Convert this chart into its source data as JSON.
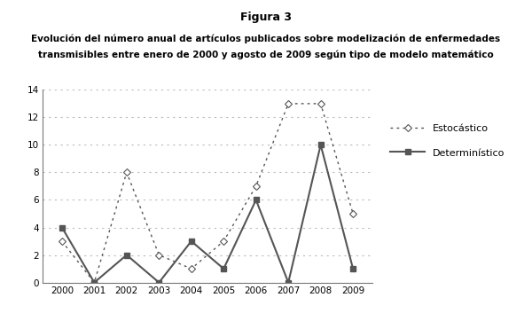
{
  "years": [
    2000,
    2001,
    2002,
    2003,
    2004,
    2005,
    2006,
    2007,
    2008,
    2009
  ],
  "estocastico": [
    3,
    0,
    8,
    2,
    1,
    3,
    7,
    13,
    13,
    5
  ],
  "deterministico": [
    4,
    0,
    2,
    0,
    3,
    1,
    6,
    0,
    10,
    1
  ],
  "title_main": "Figura 3",
  "title_sub1": "Evolución del número anual de artículos publicados sobre modelización de enfermedades",
  "title_sub2": "transmisibles entre enero de 2000 y agosto de 2009 según tipo de modelo matemático",
  "legend_estocastico": "Estocástico",
  "legend_deterministico": "Determinístico",
  "ylim": [
    0,
    14
  ],
  "yticks": [
    0,
    2,
    4,
    6,
    8,
    10,
    12,
    14
  ],
  "line_color": "#555555",
  "grid_color": "#bbbbbb",
  "bg_color": "#ffffff"
}
